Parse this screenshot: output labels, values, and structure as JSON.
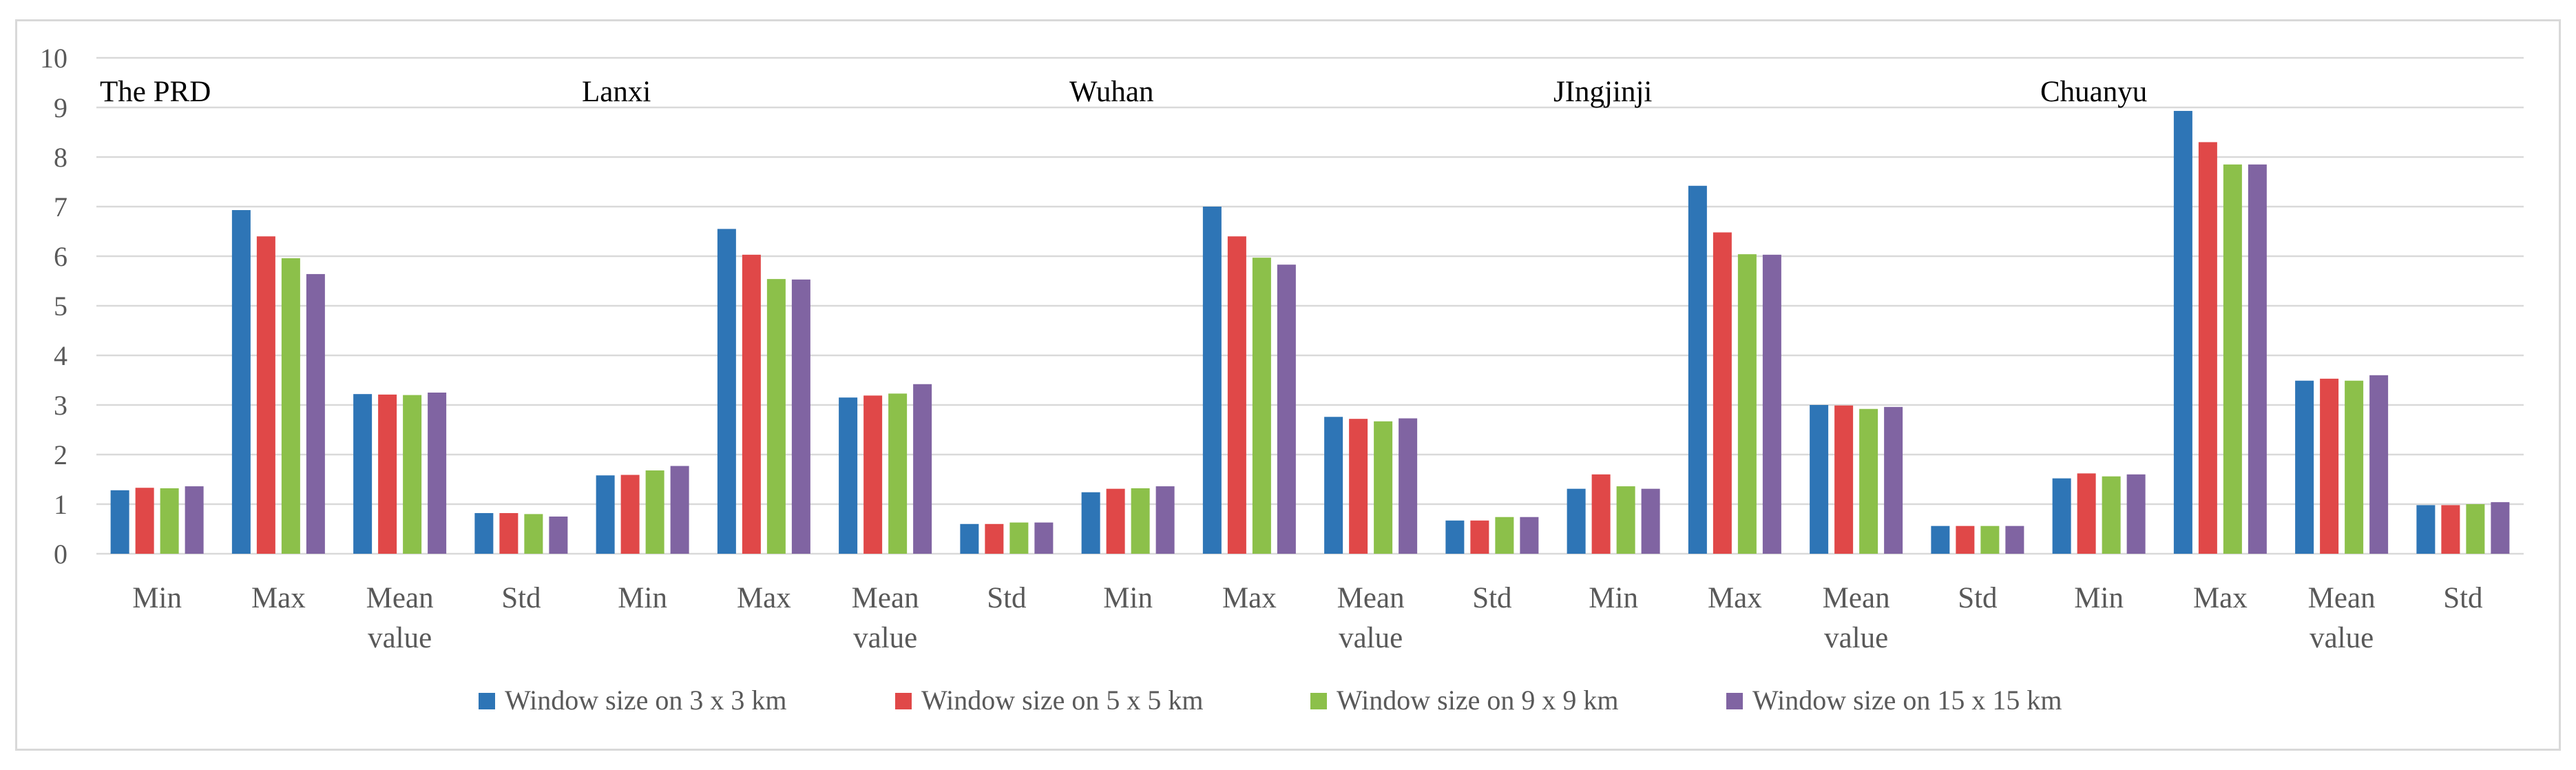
{
  "chart_data": {
    "type": "bar",
    "ylim": [
      0,
      10
    ],
    "yticks": [
      "0",
      "1",
      "2",
      "3",
      "4",
      "5",
      "6",
      "7",
      "8",
      "9",
      "10"
    ],
    "grid": true,
    "legend_position": "bottom",
    "groups": [
      {
        "name": "The PRD",
        "categories": [
          "Min",
          "Max",
          "Mean value",
          "Std"
        ]
      },
      {
        "name": "Lanxi",
        "categories": [
          "Min",
          "Max",
          "Mean value",
          "Std"
        ]
      },
      {
        "name": "Wuhan",
        "categories": [
          "Min",
          "Max",
          "Mean value",
          "Std"
        ]
      },
      {
        "name": "JIngjinji",
        "categories": [
          "Min",
          "Max",
          "Mean value",
          "Std"
        ]
      },
      {
        "name": "Chuanyu",
        "categories": [
          "Min",
          "Max",
          "Mean value",
          "Std"
        ]
      }
    ],
    "series": [
      {
        "name": "Window size on 3 x 3 km",
        "color": "#2e75b6",
        "values": [
          1.28,
          6.93,
          3.22,
          0.82,
          1.58,
          6.55,
          3.15,
          0.6,
          1.24,
          7.0,
          2.76,
          0.67,
          1.31,
          7.42,
          3.0,
          0.56,
          1.52,
          8.93,
          3.49,
          0.98
        ]
      },
      {
        "name": "Window size on 5 x 5 km",
        "color": "#e04848",
        "values": [
          1.33,
          6.4,
          3.21,
          0.82,
          1.59,
          6.03,
          3.19,
          0.6,
          1.31,
          6.4,
          2.72,
          0.67,
          1.6,
          6.48,
          2.99,
          0.56,
          1.62,
          8.3,
          3.53,
          0.98
        ]
      },
      {
        "name": "Window size on 9 x 9 km",
        "color": "#8cc04a",
        "values": [
          1.32,
          5.96,
          3.2,
          0.8,
          1.68,
          5.54,
          3.23,
          0.63,
          1.32,
          5.97,
          2.67,
          0.74,
          1.36,
          6.04,
          2.92,
          0.56,
          1.56,
          7.85,
          3.49,
          1.0
        ]
      },
      {
        "name": "Window size on 15 x 15 km",
        "color": "#8064a2",
        "values": [
          1.36,
          5.64,
          3.25,
          0.75,
          1.77,
          5.53,
          3.42,
          0.63,
          1.36,
          5.83,
          2.73,
          0.74,
          1.31,
          6.03,
          2.96,
          0.56,
          1.6,
          7.85,
          3.6,
          1.04
        ]
      }
    ]
  }
}
